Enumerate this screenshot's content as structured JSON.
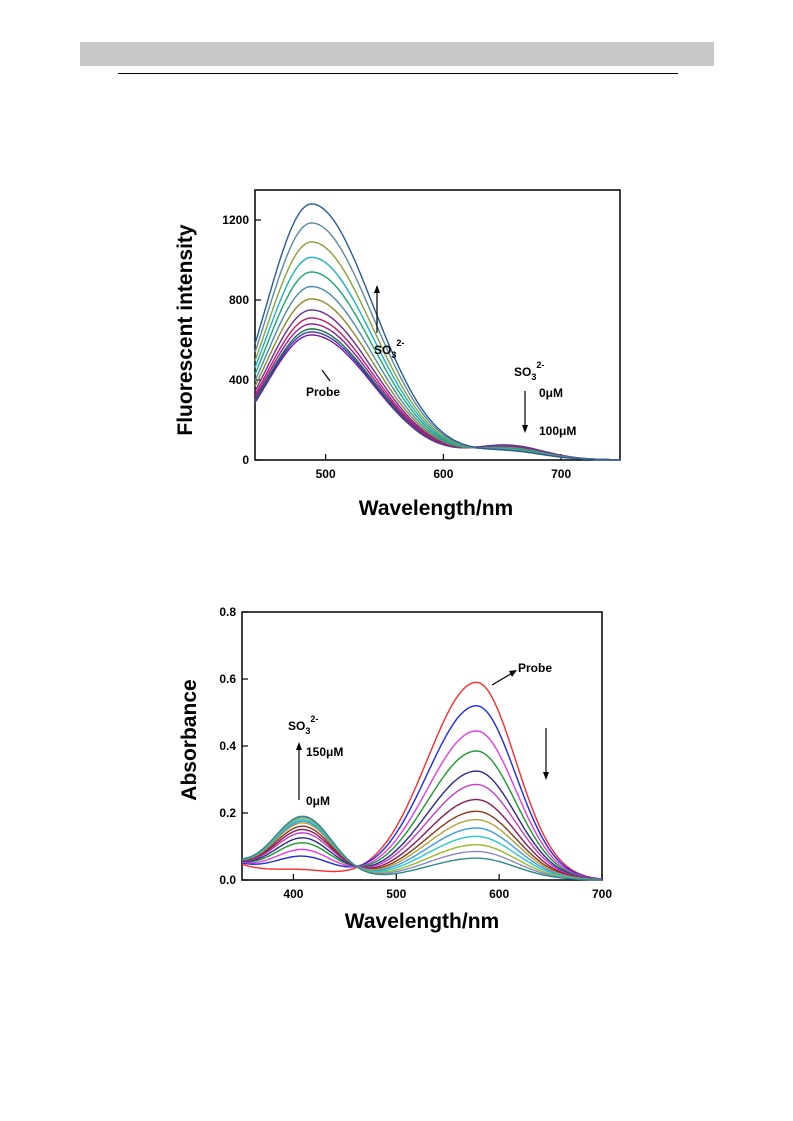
{
  "chart_data": [
    {
      "type": "line",
      "title": "",
      "xlabel": "Wavelength/nm",
      "ylabel": "Fluorescent intensity",
      "xlim": [
        440,
        750
      ],
      "ylim": [
        0,
        1350
      ],
      "x_ticks": [
        "500",
        "600",
        "700"
      ],
      "y_ticks": [
        "0",
        "400",
        "800",
        "1200"
      ],
      "grid": false,
      "annotations": {
        "probe": "Probe",
        "so3_left": "SO",
        "so3_left_sub": "3",
        "so3_left_sup": "2-",
        "so3_right": "SO",
        "so3_right_sub": "3",
        "so3_right_sup": "2-",
        "conc_start": "0μM",
        "conc_end": "100μM"
      },
      "series": [
        {
          "color": "#7b16a6",
          "peak1": 620,
          "peak2": 70
        },
        {
          "color": "#3a3ab8",
          "peak1": 635,
          "peak2": 68
        },
        {
          "color": "#1a6e3a",
          "peak1": 650,
          "peak2": 66
        },
        {
          "color": "#9a1aa6",
          "peak1": 675,
          "peak2": 64
        },
        {
          "color": "#c21a6e",
          "peak1": 705,
          "peak2": 62
        },
        {
          "color": "#6a2a9a",
          "peak1": 745,
          "peak2": 60
        },
        {
          "color": "#8a8a2a",
          "peak1": 800,
          "peak2": 57
        },
        {
          "color": "#4a8ab0",
          "peak1": 862,
          "peak2": 54
        },
        {
          "color": "#1aa86a",
          "peak1": 935,
          "peak2": 51
        },
        {
          "color": "#1ab0c8",
          "peak1": 1008,
          "peak2": 48
        },
        {
          "color": "#8aa03a",
          "peak1": 1085,
          "peak2": 45
        },
        {
          "color": "#5a8aa0",
          "peak1": 1180,
          "peak2": 42
        },
        {
          "color": "#2a5a9a",
          "peak1": 1275,
          "peak2": 40
        }
      ]
    },
    {
      "type": "line",
      "title": "",
      "xlabel": "Wavelength/nm",
      "ylabel": "Absorbance",
      "xlim": [
        350,
        700
      ],
      "ylim": [
        0,
        0.8
      ],
      "x_ticks": [
        "400",
        "500",
        "600",
        "700"
      ],
      "y_ticks": [
        "0.0",
        "0.2",
        "0.4",
        "0.6",
        "0.8"
      ],
      "grid": false,
      "annotations": {
        "probe": "Probe",
        "so3": "SO",
        "so3_sub": "3",
        "so3_sup": "2-",
        "conc_high": "150μM",
        "conc_low": "0μM"
      },
      "series": [
        {
          "color": "#ff2a2a",
          "peak410": 0.02,
          "peak580": 0.59
        },
        {
          "color": "#1a2ae8",
          "peak410": 0.06,
          "peak580": 0.52
        },
        {
          "color": "#e83ae8",
          "peak410": 0.08,
          "peak580": 0.445
        },
        {
          "color": "#1a9a2a",
          "peak410": 0.1,
          "peak580": 0.385
        },
        {
          "color": "#2a2a8a",
          "peak410": 0.115,
          "peak580": 0.325
        },
        {
          "color": "#c83ac8",
          "peak410": 0.13,
          "peak580": 0.285
        },
        {
          "color": "#8a1a5a",
          "peak410": 0.14,
          "peak580": 0.24
        },
        {
          "color": "#8a3a1a",
          "peak410": 0.15,
          "peak580": 0.205
        },
        {
          "color": "#b8a03a",
          "peak410": 0.16,
          "peak580": 0.18
        },
        {
          "color": "#3a9ae8",
          "peak410": 0.165,
          "peak580": 0.155
        },
        {
          "color": "#2ac8c8",
          "peak410": 0.17,
          "peak580": 0.13
        },
        {
          "color": "#9ab82a",
          "peak410": 0.175,
          "peak580": 0.105
        },
        {
          "color": "#8a8ac8",
          "peak410": 0.178,
          "peak580": 0.085
        },
        {
          "color": "#2a8a8a",
          "peak410": 0.18,
          "peak580": 0.065
        }
      ]
    }
  ]
}
